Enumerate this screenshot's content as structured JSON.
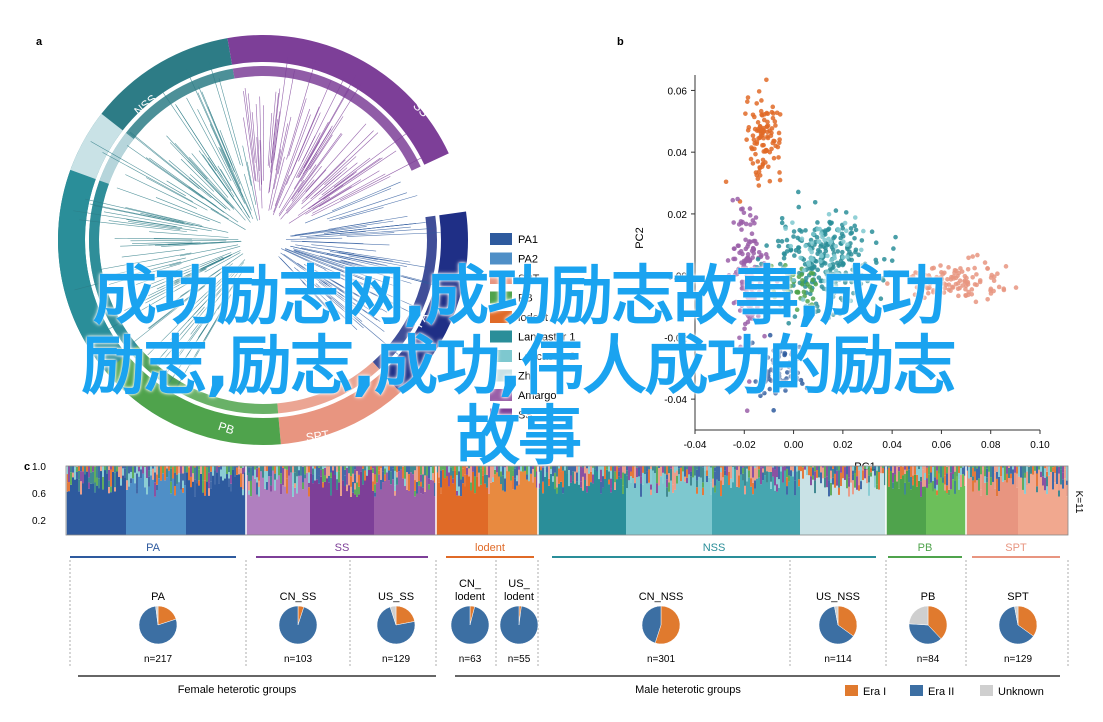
{
  "colors": {
    "PA": "#2e5a9e",
    "PA2": "#4f8fc7",
    "SPT": "#e89580",
    "PB": "#4fa34c",
    "lodent": "#e06a27",
    "Lancaster1": "#2a8e99",
    "Lancaster2": "#7ec8cf",
    "Zhi": "#c9e2e6",
    "Amargo": "#9a5fa8",
    "SS": "#7d3f98",
    "NSS": "#2d7c86",
    "EraI": "#e07a2e",
    "EraII": "#3c6fa3",
    "Unknown": "#cfcfcf"
  },
  "panel_a": {
    "label": "a",
    "ring_labels": [
      "NSS",
      "SS",
      "PA",
      "PB",
      "SPT"
    ],
    "legend": [
      "PA1",
      "PA2",
      "SPT",
      "PB",
      "lodent",
      "Lancaster 1",
      "Lancaster 2",
      "Zhi",
      "Amargo",
      "SS"
    ]
  },
  "panel_b": {
    "label": "b",
    "xlabel": "PC1",
    "ylabel": "PC2",
    "x_ticks": [
      "-0.04",
      "-0.02",
      "0.00",
      "0.02",
      "0.04",
      "0.06",
      "0.08",
      "0.10"
    ],
    "y_ticks": [
      "0.06",
      "0.04",
      "0.02",
      "0.00",
      "-0.02",
      "-0.04"
    ]
  },
  "panel_c": {
    "label": "c",
    "y_ticks": [
      "1.0",
      "0.6",
      "0.2"
    ],
    "k_label": "K=11",
    "group_headers": [
      "PA",
      "SS",
      "lodent",
      "NSS",
      "PB",
      "SPT"
    ],
    "sub_left_label": "Female heterotic groups",
    "sub_right_label": "Male heterotic groups",
    "era_legend": [
      "Era I",
      "Era II",
      "Unknown"
    ]
  },
  "chart_data": [
    {
      "type": "scatter",
      "title": "",
      "xlabel": "PC1",
      "ylabel": "PC2",
      "xlim": [
        -0.04,
        0.1
      ],
      "ylim": [
        -0.05,
        0.065
      ],
      "grid": false,
      "series": [
        {
          "name": "lodent",
          "color": "#e06a27",
          "center": [
            -0.012,
            0.045
          ],
          "spread": [
            0.006,
            0.01
          ],
          "count": 110
        },
        {
          "name": "SS",
          "color": "#9a5fa8",
          "center": [
            -0.018,
            0.0
          ],
          "spread": [
            0.006,
            0.018
          ],
          "count": 160
        },
        {
          "name": "NSS",
          "color": "#2a8e99",
          "center": [
            0.012,
            0.005
          ],
          "spread": [
            0.018,
            0.013
          ],
          "count": 260
        },
        {
          "name": "PB",
          "color": "#4fa34c",
          "center": [
            0.0,
            -0.004
          ],
          "spread": [
            0.008,
            0.007
          ],
          "count": 40
        },
        {
          "name": "Lancaster 2",
          "color": "#7ec8cf",
          "center": [
            0.012,
            0.008
          ],
          "spread": [
            0.012,
            0.01
          ],
          "count": 60
        },
        {
          "name": "SPT",
          "color": "#e89580",
          "center": [
            0.065,
            -0.002
          ],
          "spread": [
            0.02,
            0.005
          ],
          "count": 120
        },
        {
          "name": "PA",
          "color": "#2e5a9e",
          "center": [
            -0.006,
            -0.032
          ],
          "spread": [
            0.009,
            0.007
          ],
          "count": 60
        }
      ]
    },
    {
      "type": "pie",
      "title": "PA",
      "slices": [
        {
          "label": "Era I",
          "value": 0.2
        },
        {
          "label": "Era II",
          "value": 0.78
        },
        {
          "label": "Unknown",
          "value": 0.02
        }
      ],
      "n": "n=217"
    },
    {
      "type": "pie",
      "title": "CN_SS",
      "slices": [
        {
          "label": "Era I",
          "value": 0.05
        },
        {
          "label": "Era II",
          "value": 0.95
        },
        {
          "label": "Unknown",
          "value": 0.0
        }
      ],
      "n": "n=103"
    },
    {
      "type": "pie",
      "title": "US_SS",
      "slices": [
        {
          "label": "Era I",
          "value": 0.22
        },
        {
          "label": "Era II",
          "value": 0.73
        },
        {
          "label": "Unknown",
          "value": 0.05
        }
      ],
      "n": "n=129"
    },
    {
      "type": "pie",
      "title": "CN_ lodent",
      "slices": [
        {
          "label": "Era I",
          "value": 0.04
        },
        {
          "label": "Era II",
          "value": 0.96
        },
        {
          "label": "Unknown",
          "value": 0.0
        }
      ],
      "n": "n=63"
    },
    {
      "type": "pie",
      "title": "US_ lodent",
      "slices": [
        {
          "label": "Era I",
          "value": 0.02
        },
        {
          "label": "Era II",
          "value": 0.98
        },
        {
          "label": "Unknown",
          "value": 0.0
        }
      ],
      "n": "n=55"
    },
    {
      "type": "pie",
      "title": "CN_NSS",
      "slices": [
        {
          "label": "Era I",
          "value": 0.55
        },
        {
          "label": "Era II",
          "value": 0.45
        },
        {
          "label": "Unknown",
          "value": 0.0
        }
      ],
      "n": "n=301"
    },
    {
      "type": "pie",
      "title": "US_NSS",
      "slices": [
        {
          "label": "Era I",
          "value": 0.35
        },
        {
          "label": "Era II",
          "value": 0.62
        },
        {
          "label": "Unknown",
          "value": 0.03
        }
      ],
      "n": "n=114"
    },
    {
      "type": "pie",
      "title": "PB",
      "slices": [
        {
          "label": "Era I",
          "value": 0.38
        },
        {
          "label": "Era II",
          "value": 0.38
        },
        {
          "label": "Unknown",
          "value": 0.24
        }
      ],
      "n": "n=84"
    },
    {
      "type": "pie",
      "title": "SPT",
      "slices": [
        {
          "label": "Era I",
          "value": 0.35
        },
        {
          "label": "Era II",
          "value": 0.62
        },
        {
          "label": "Unknown",
          "value": 0.03
        }
      ],
      "n": "n=129"
    }
  ],
  "overlay": {
    "line1": "成功励志网,成功励志故事,成功",
    "line2": "励志,励志,成功,伟人成功的励志",
    "line3": "故事"
  }
}
